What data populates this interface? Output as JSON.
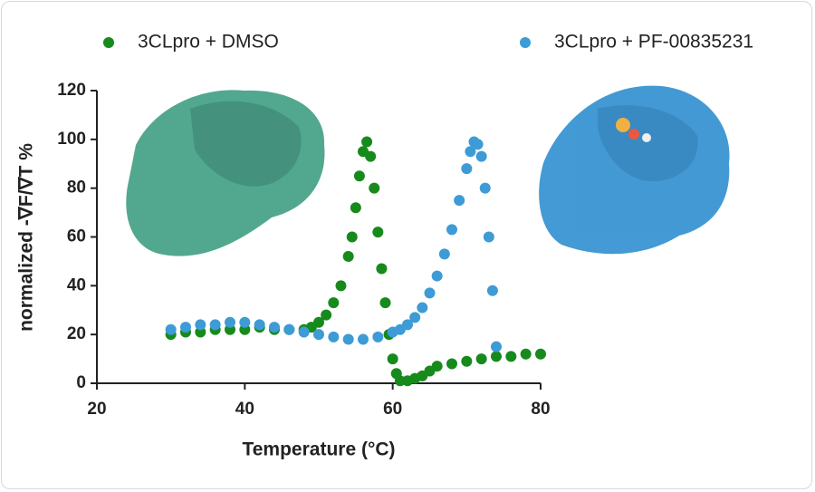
{
  "chart_data": {
    "type": "scatter",
    "xlabel": "Temperature (°C)",
    "ylabel": "normalized -∇F/∇T %",
    "xlim": [
      20,
      80
    ],
    "xticks": [
      20,
      40,
      60,
      80
    ],
    "ylim": [
      0,
      120
    ],
    "yticks": [
      0,
      20,
      40,
      60,
      80,
      100,
      120
    ],
    "grid": false,
    "legend": "top",
    "series": [
      {
        "name": "3CLpro + DMSO",
        "color": "#178a1c",
        "x": [
          30,
          32,
          34,
          36,
          38,
          40,
          42,
          44,
          46,
          48,
          49,
          50,
          51,
          52,
          53,
          54,
          54.5,
          55,
          55.5,
          56,
          56.5,
          57,
          57.5,
          58,
          58.5,
          59,
          59.5,
          60,
          60.5,
          61,
          62,
          63,
          64,
          65,
          66,
          68,
          70,
          72,
          74,
          76,
          78,
          80
        ],
        "values": [
          20,
          21,
          21,
          22,
          22,
          22,
          23,
          22,
          22,
          22,
          23,
          25,
          28,
          33,
          40,
          52,
          60,
          72,
          85,
          95,
          99,
          93,
          80,
          62,
          47,
          33,
          20,
          10,
          4,
          1,
          1,
          2,
          3,
          5,
          7,
          8,
          9,
          10,
          11,
          11,
          12,
          12
        ]
      },
      {
        "name": "3CLpro + PF-00835231",
        "color": "#3d9bd6",
        "x": [
          30,
          32,
          34,
          36,
          38,
          40,
          42,
          44,
          46,
          48,
          50,
          52,
          54,
          56,
          58,
          60,
          61,
          62,
          63,
          64,
          65,
          66,
          67,
          68,
          69,
          70,
          70.5,
          71,
          71.5,
          72,
          72.5,
          73,
          73.5,
          74
        ],
        "values": [
          22,
          23,
          24,
          24,
          25,
          25,
          24,
          23,
          22,
          21,
          20,
          19,
          18,
          18,
          19,
          21,
          22,
          24,
          27,
          31,
          37,
          44,
          53,
          63,
          75,
          88,
          95,
          99,
          98,
          93,
          80,
          60,
          38,
          15
        ]
      }
    ]
  }
}
